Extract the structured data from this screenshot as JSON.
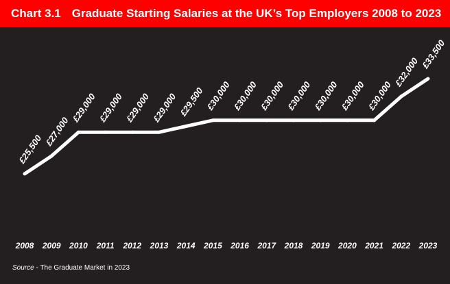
{
  "header": {
    "chart_label": "Chart 3.1",
    "title": "Graduate Starting Salaries at the UK’s Top Employers 2008 to 2023"
  },
  "source": {
    "label": "Source",
    "text": " - The Graduate Market in 2023"
  },
  "colors": {
    "header_bg": "#ff0000",
    "background": "#231f20",
    "line": "#ffffff",
    "text": "#ffffff"
  },
  "chart_data": {
    "type": "line",
    "title": "Graduate Starting Salaries at the UK’s Top Employers 2008 to 2023",
    "x": [
      "2008",
      "2009",
      "2010",
      "2011",
      "2012",
      "2013",
      "2014",
      "2015",
      "2016",
      "2017",
      "2018",
      "2019",
      "2020",
      "2021",
      "2022",
      "2023"
    ],
    "series": [
      {
        "values": [
          25500,
          27000,
          29000,
          29000,
          29000,
          29000,
          29500,
          30000,
          30000,
          30000,
          30000,
          30000,
          30000,
          30000,
          32000,
          33500
        ]
      }
    ],
    "data_labels": [
      "£25,500",
      "£27,000",
      "£29,000",
      "£29,000",
      "£29,000",
      "£29,000",
      "£29,500",
      "£30,000",
      "£30,000",
      "£30,000",
      "£30,000",
      "£30,000",
      "£30,000",
      "£30,000",
      "£32,000",
      "£33,500"
    ],
    "xlabel": "",
    "ylabel": "",
    "axes_visible": false,
    "grid": false,
    "legend": "none"
  }
}
